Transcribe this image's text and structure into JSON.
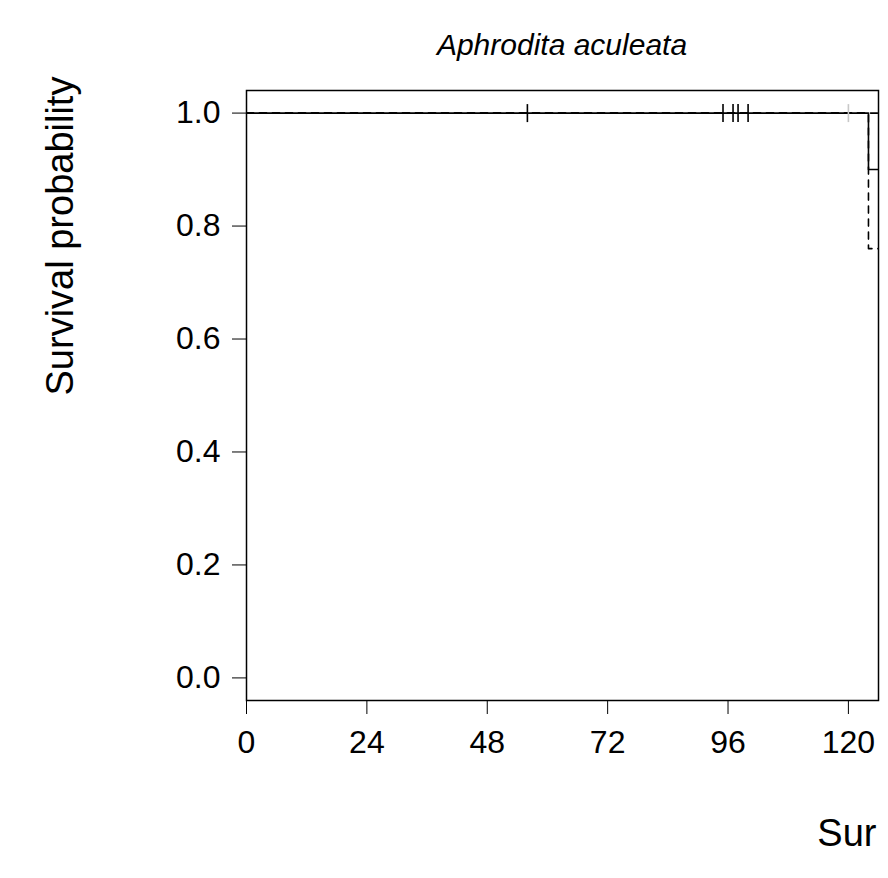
{
  "chart_data": {
    "type": "line",
    "title": "Aphrodita aculeata",
    "x_label": "Sur",
    "y_label": "Survival probability",
    "xlim": [
      0,
      126
    ],
    "ylim": [
      -0.04,
      1.04
    ],
    "xticks": [
      0,
      24,
      48,
      72,
      96,
      120
    ],
    "yticks": [
      {
        "value": 0,
        "label": "0.0"
      },
      {
        "value": 0.2,
        "label": "0.2"
      },
      {
        "value": 0.4,
        "label": "0.4"
      },
      {
        "value": 0.6,
        "label": "0.6"
      },
      {
        "value": 0.8,
        "label": "0.8"
      },
      {
        "value": 1,
        "label": "1.0"
      }
    ],
    "grid": false,
    "series": [
      {
        "type": "step",
        "color": "#000000",
        "line_style": "dashed",
        "x": [
          0,
          124,
          126
        ],
        "values": [
          1,
          1,
          1
        ]
      },
      {
        "type": "step",
        "color": "#000000",
        "line_style": "dashed",
        "x": [
          0,
          124,
          126
        ],
        "values": [
          1,
          0.76,
          0.76
        ]
      },
      {
        "type": "step",
        "color": "#000000",
        "line_style": "solid",
        "x": [
          0,
          124,
          126
        ],
        "values": [
          1,
          0.9,
          0.9
        ]
      },
      {
        "type": "scatter",
        "color": "#000000",
        "marker": "tick",
        "x": [
          56,
          95,
          97,
          98,
          100
        ],
        "values": [
          1,
          1,
          1,
          1,
          1
        ]
      },
      {
        "type": "scatter",
        "color": "#c8c8c8",
        "marker": "tick",
        "x": [
          120
        ],
        "values": [
          1
        ]
      }
    ]
  }
}
